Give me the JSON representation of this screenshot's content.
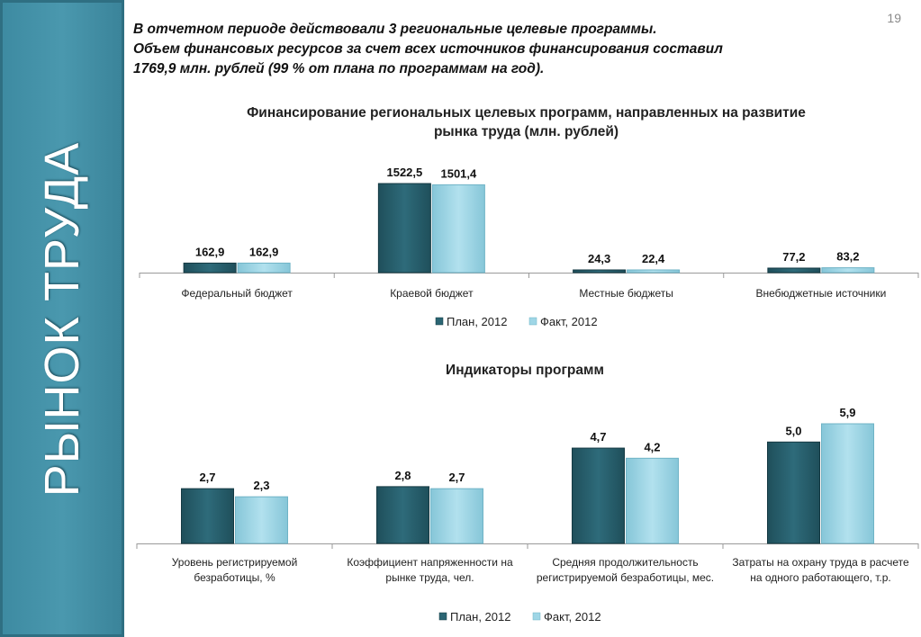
{
  "sidebar": {
    "title": "РЫНОК ТРУДА"
  },
  "page_number": "19",
  "intro": {
    "line1": "В отчетном периоде действовали 3 региональные целевые программы.",
    "line2": "Объем финансовых ресурсов за счет всех источников финансирования составил",
    "line3": "1769,9 млн. рублей (99 % от плана по программам на год)."
  },
  "colors": {
    "plan": "#2b6573",
    "fact": "#9fd6e6",
    "sidebar": "#4a98ae"
  },
  "chart_data": [
    {
      "type": "bar",
      "title_lines": [
        "Финансирование региональных целевых программ, направленных на развитие",
        "рынка труда (млн. рублей)"
      ],
      "categories": [
        [
          "Федеральный бюджет"
        ],
        [
          "Краевой бюджет"
        ],
        [
          "Местные бюджеты"
        ],
        [
          "Внебюджетные источники"
        ]
      ],
      "series": [
        {
          "name": "План, 2012",
          "values": [
            162.9,
            1522.5,
            24.3,
            77.2
          ],
          "labels": [
            "162,9",
            "1522,5",
            "24,3",
            "77,2"
          ]
        },
        {
          "name": "Факт, 2012",
          "values": [
            162.9,
            1501.4,
            22.4,
            83.2
          ],
          "labels": [
            "162,9",
            "1501,4",
            "22,4",
            "83,2"
          ]
        }
      ],
      "ylim": [
        0,
        1522.5
      ],
      "legend": "bottom"
    },
    {
      "type": "bar",
      "title_lines": [
        "Индикаторы программ"
      ],
      "categories": [
        [
          "Уровень регистрируемой",
          "безработицы, %"
        ],
        [
          "Коэффициент напряженности на",
          "рынке труда, чел."
        ],
        [
          "Средняя продолжительность",
          "регистрируемой безработицы, мес."
        ],
        [
          "Затраты на охрану труда в расчете",
          "на одного работающего, т.р."
        ]
      ],
      "series": [
        {
          "name": "План, 2012",
          "values": [
            2.7,
            2.8,
            4.7,
            5.0
          ],
          "labels": [
            "2,7",
            "2,8",
            "4,7",
            "5,0"
          ]
        },
        {
          "name": "Факт, 2012",
          "values": [
            2.3,
            2.7,
            4.2,
            5.9
          ],
          "labels": [
            "2,3",
            "2,7",
            "4,2",
            "5,9"
          ]
        }
      ],
      "ylim": [
        0,
        5.9
      ],
      "legend": "bottom"
    }
  ]
}
